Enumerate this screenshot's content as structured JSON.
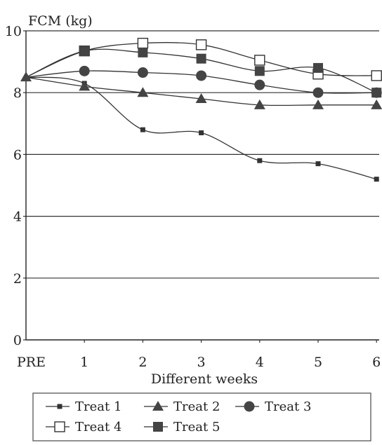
{
  "chart_data": {
    "type": "line",
    "title": "",
    "ylabel": "FCM (kg)",
    "xlabel": "Different weeks",
    "categories": [
      "PRE",
      "1",
      "2",
      "3",
      "4",
      "5",
      "6"
    ],
    "yticks": [
      "0",
      "2",
      "4",
      "6",
      "8",
      "10"
    ],
    "ylim": [
      0,
      10
    ],
    "grid": true,
    "legend_position": "bottom",
    "series": [
      {
        "name": "Treat 1",
        "marker": "small-square",
        "values": [
          8.5,
          8.3,
          6.8,
          6.7,
          5.8,
          5.7,
          5.2
        ]
      },
      {
        "name": "Treat 2",
        "marker": "triangle",
        "values": [
          8.5,
          8.2,
          8.0,
          7.8,
          7.6,
          7.6,
          7.6
        ]
      },
      {
        "name": "Treat 3",
        "marker": "circle",
        "values": [
          8.5,
          8.7,
          8.65,
          8.55,
          8.25,
          8.0,
          8.0
        ]
      },
      {
        "name": "Treat 4",
        "marker": "open-square",
        "values": [
          8.5,
          9.35,
          9.6,
          9.55,
          9.05,
          8.6,
          8.55
        ]
      },
      {
        "name": "Treat 5",
        "marker": "filled-square",
        "values": [
          8.5,
          9.35,
          9.3,
          9.1,
          8.7,
          8.8,
          8.0
        ]
      }
    ]
  }
}
